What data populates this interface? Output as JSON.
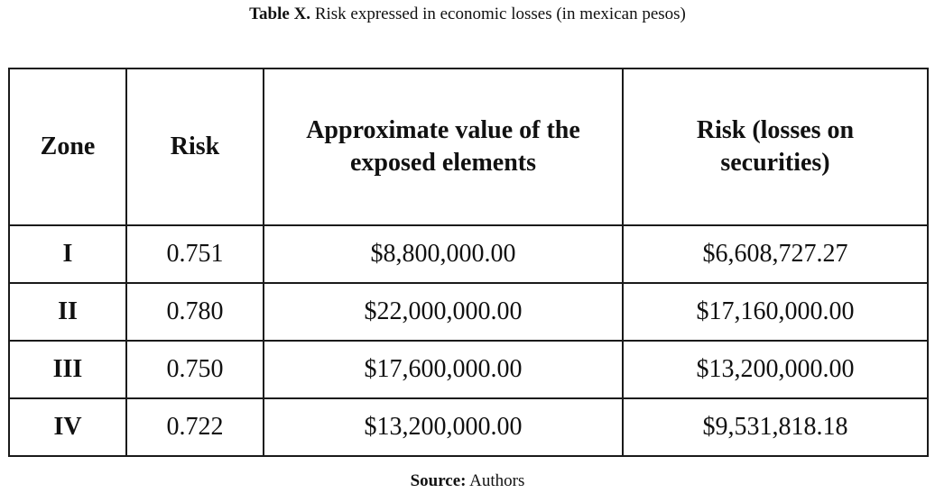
{
  "caption": {
    "label": "Table X.",
    "text": " Risk expressed in economic losses (in mexican pesos)"
  },
  "table": {
    "headers": [
      "Zone",
      "Risk",
      "Approximate value of the exposed elements",
      "Risk (losses on securities)"
    ],
    "rows": [
      [
        "I",
        "0.751",
        "$8,800,000.00",
        "$6,608,727.27"
      ],
      [
        "II",
        "0.780",
        "$22,000,000.00",
        "$17,160,000.00"
      ],
      [
        "III",
        "0.750",
        "$17,600,000.00",
        "$13,200,000.00"
      ],
      [
        "IV",
        "0.722",
        "$13,200,000.00",
        "$9,531,818.18"
      ]
    ]
  },
  "source": {
    "label": "Source:",
    "text": " Authors"
  }
}
